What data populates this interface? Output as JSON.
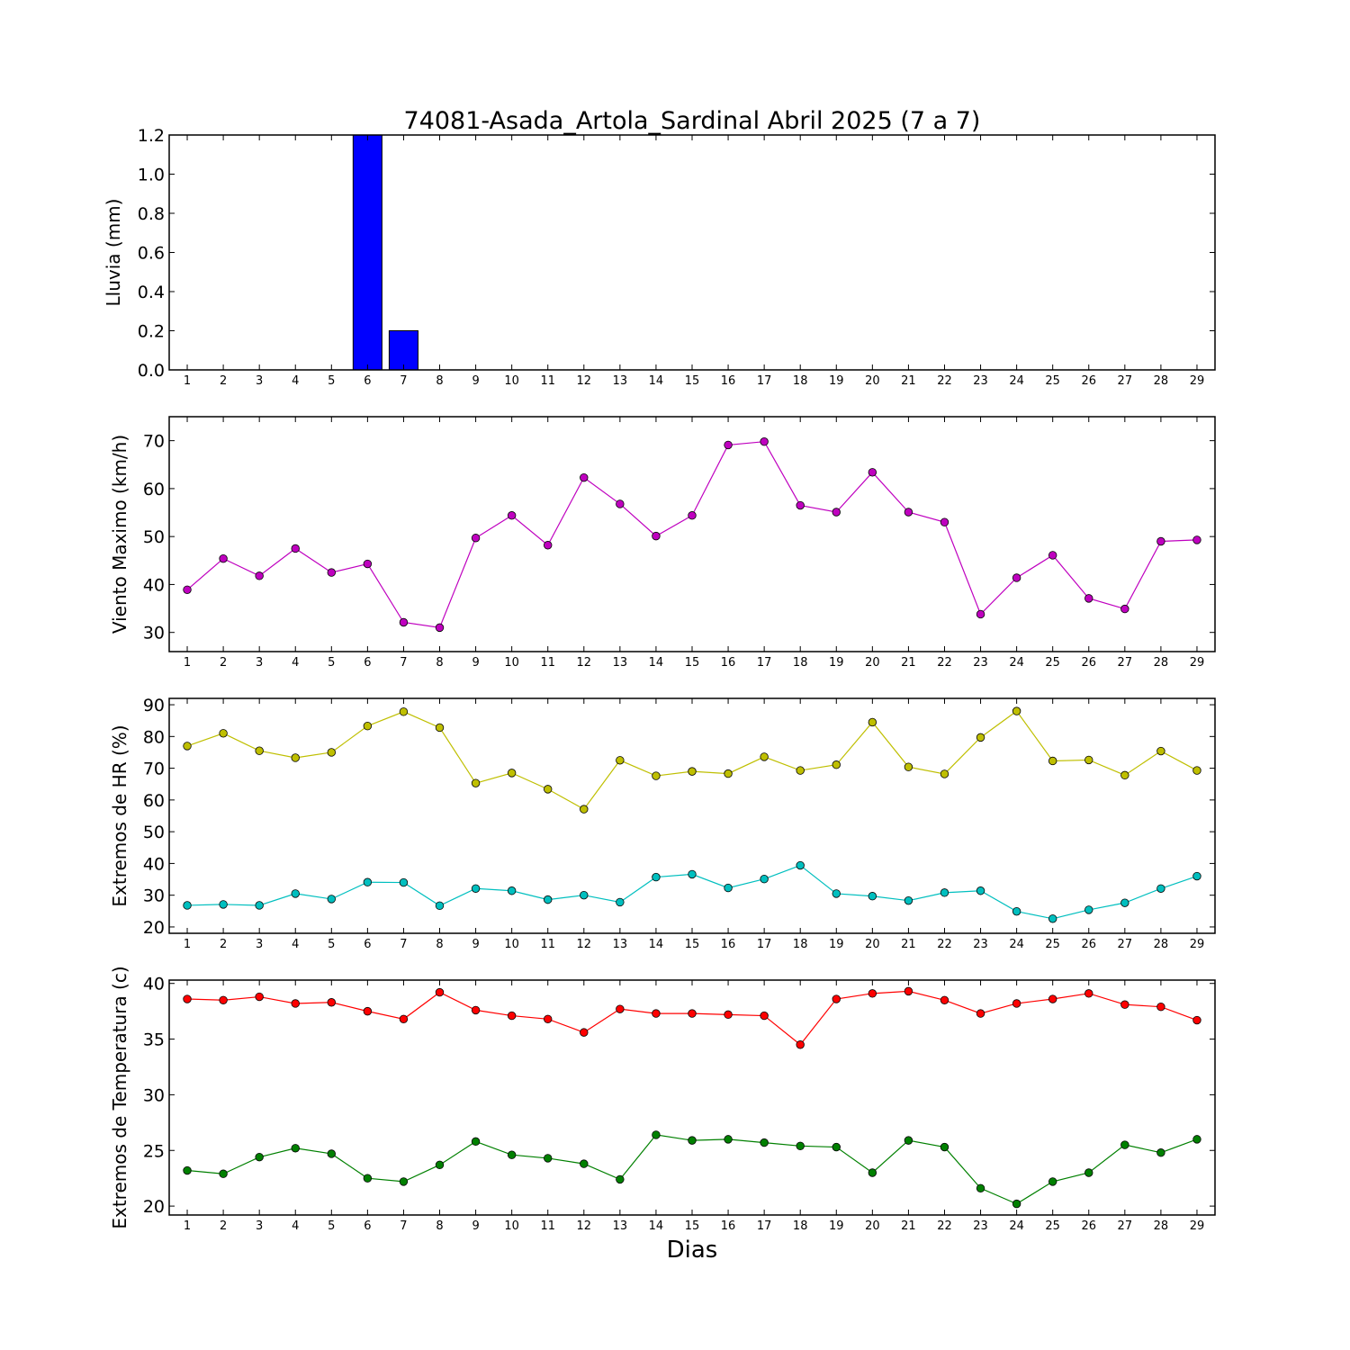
{
  "chart": {
    "title": "74081-Asada_Artola_Sardinal Abril 2025  (7 a 7)",
    "xlabel": "Dias"
  },
  "chart_data": [
    {
      "type": "bar",
      "ylabel": "Lluvia (mm)",
      "ylim": [
        0,
        1.2
      ],
      "yticks": [
        0,
        0.2,
        0.4,
        0.6,
        0.8,
        1.0,
        1.2
      ],
      "ytick_labels": [
        "0.0",
        "0.2",
        "0.4",
        "0.6",
        "0.8",
        "1.0",
        "1.2"
      ],
      "xlim": [
        0.5,
        29.5
      ],
      "x": [
        1,
        2,
        3,
        4,
        5,
        6,
        7,
        8,
        9,
        10,
        11,
        12,
        13,
        14,
        15,
        16,
        17,
        18,
        19,
        20,
        21,
        22,
        23,
        24,
        25,
        26,
        27,
        28,
        29
      ],
      "series": [
        {
          "color": "#0000ff",
          "values": [
            0,
            0,
            0,
            0,
            0,
            1.2,
            0.2,
            0,
            0,
            0,
            0,
            0,
            0,
            0,
            0,
            0,
            0,
            0,
            0,
            0,
            0,
            0,
            0,
            0,
            0,
            0,
            0,
            0,
            0
          ]
        }
      ]
    },
    {
      "type": "line",
      "ylabel": "Viento Maximo (km/h)",
      "ylim": [
        26,
        75
      ],
      "yticks": [
        30,
        40,
        50,
        60,
        70
      ],
      "ytick_labels": [
        "30",
        "40",
        "50",
        "60",
        "70"
      ],
      "xlim": [
        0.5,
        29.5
      ],
      "x": [
        1,
        2,
        3,
        4,
        5,
        6,
        7,
        8,
        9,
        10,
        11,
        12,
        13,
        14,
        15,
        16,
        17,
        18,
        19,
        20,
        21,
        22,
        23,
        24,
        25,
        26,
        27,
        28,
        29
      ],
      "series": [
        {
          "color": "#bf00bf",
          "values": [
            38.9,
            45.4,
            41.8,
            47.5,
            42.5,
            44.3,
            32.1,
            31.0,
            49.7,
            54.4,
            48.2,
            62.3,
            56.8,
            50.1,
            54.4,
            69.1,
            69.8,
            56.5,
            55.1,
            63.4,
            55.1,
            53.0,
            33.8,
            41.4,
            46.1,
            37.1,
            34.9,
            49.0,
            49.3
          ]
        }
      ]
    },
    {
      "type": "line",
      "ylabel": "Extremos de HR (%)",
      "ylim": [
        18,
        92
      ],
      "yticks": [
        20,
        30,
        40,
        50,
        60,
        70,
        80,
        90
      ],
      "ytick_labels": [
        "20",
        "30",
        "40",
        "50",
        "60",
        "70",
        "80",
        "90"
      ],
      "xlim": [
        0.5,
        29.5
      ],
      "x": [
        1,
        2,
        3,
        4,
        5,
        6,
        7,
        8,
        9,
        10,
        11,
        12,
        13,
        14,
        15,
        16,
        17,
        18,
        19,
        20,
        21,
        22,
        23,
        24,
        25,
        26,
        27,
        28,
        29
      ],
      "series": [
        {
          "color": "#bfbf00",
          "values": [
            77.0,
            81.0,
            75.5,
            73.3,
            75.0,
            83.3,
            87.8,
            82.8,
            65.3,
            68.5,
            63.4,
            57.1,
            72.5,
            67.6,
            69.0,
            68.3,
            73.6,
            69.3,
            71.1,
            84.5,
            70.4,
            68.2,
            79.7,
            88.0,
            72.3,
            72.6,
            67.8,
            75.4,
            69.3
          ]
        },
        {
          "color": "#00bfbf",
          "values": [
            26.8,
            27.1,
            26.8,
            30.5,
            28.8,
            34.1,
            34.0,
            26.7,
            32.1,
            31.4,
            28.6,
            30.0,
            27.8,
            35.7,
            36.6,
            32.3,
            35.1,
            39.4,
            30.5,
            29.7,
            28.3,
            30.8,
            31.4,
            24.9,
            22.6,
            25.4,
            27.6,
            32.1,
            36.0
          ]
        }
      ]
    },
    {
      "type": "line",
      "ylabel": "Extremos de Temperatura (c)",
      "ylim": [
        19.2,
        40.3
      ],
      "yticks": [
        20,
        25,
        30,
        35,
        40
      ],
      "ytick_labels": [
        "20",
        "25",
        "30",
        "35",
        "40"
      ],
      "xlim": [
        0.5,
        29.5
      ],
      "x": [
        1,
        2,
        3,
        4,
        5,
        6,
        7,
        8,
        9,
        10,
        11,
        12,
        13,
        14,
        15,
        16,
        17,
        18,
        19,
        20,
        21,
        22,
        23,
        24,
        25,
        26,
        27,
        28,
        29
      ],
      "series": [
        {
          "color": "#ff0000",
          "values": [
            38.6,
            38.5,
            38.8,
            38.2,
            38.3,
            37.5,
            36.8,
            39.2,
            37.6,
            37.1,
            36.8,
            35.6,
            37.7,
            37.3,
            37.3,
            37.2,
            37.1,
            34.5,
            38.6,
            39.1,
            39.3,
            38.5,
            37.3,
            38.2,
            38.6,
            39.1,
            38.1,
            37.9,
            36.7
          ]
        },
        {
          "color": "#008000",
          "values": [
            23.2,
            22.9,
            24.4,
            25.2,
            24.7,
            22.5,
            22.2,
            23.7,
            25.8,
            24.6,
            24.3,
            23.8,
            22.4,
            26.4,
            25.9,
            26.0,
            25.7,
            25.4,
            25.3,
            23.0,
            25.9,
            25.3,
            21.6,
            20.2,
            22.2,
            23.0,
            25.5,
            24.8,
            26.0
          ]
        }
      ]
    }
  ]
}
